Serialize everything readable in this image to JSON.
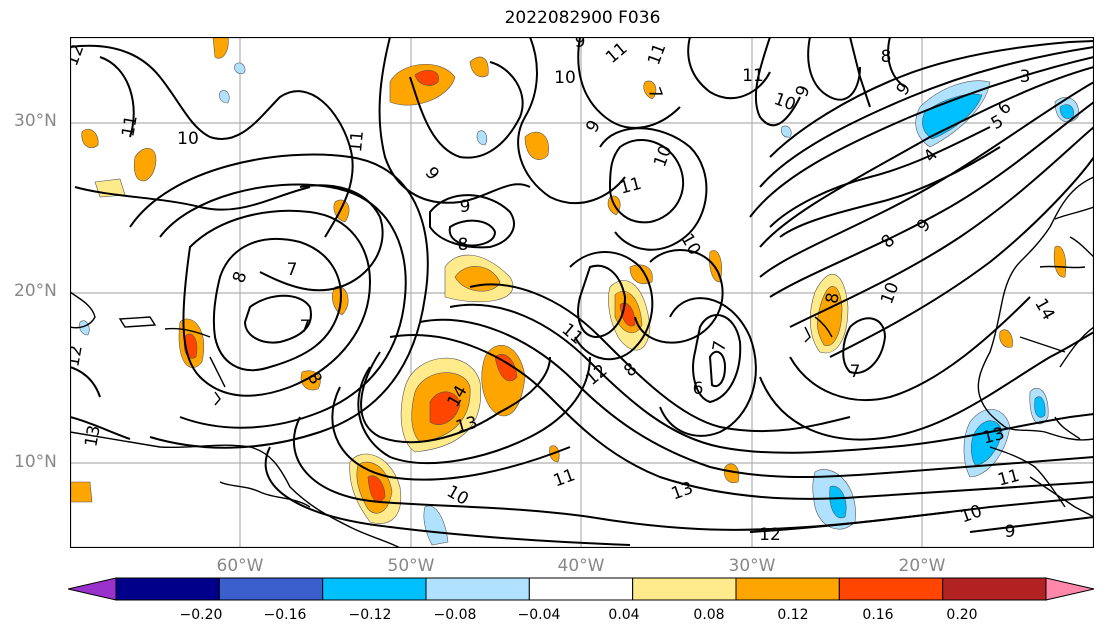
{
  "title": "2022082900 F036",
  "lat_labels": [
    {
      "label": "30°N",
      "lat": 30
    },
    {
      "label": "20°N",
      "lat": 20
    },
    {
      "label": "10°N",
      "lat": 10
    }
  ],
  "lon_labels": [
    {
      "label": "60°W",
      "lon": -60
    },
    {
      "label": "50°W",
      "lon": -50
    },
    {
      "label": "40°W",
      "lon": -40
    },
    {
      "label": "30°W",
      "lon": -30
    },
    {
      "label": "20°W",
      "lon": -20
    }
  ],
  "contour_labels": [
    "12",
    "11",
    "10",
    "8",
    "7",
    "7",
    "8",
    "9",
    "11",
    "9",
    "8",
    "9",
    "10",
    "11",
    "11",
    "9",
    "10",
    "7",
    "11",
    "10",
    "11",
    "10",
    "9",
    "8",
    "3",
    "6",
    "4",
    "5",
    "9",
    "8",
    "9",
    "10",
    "14",
    "13",
    "14",
    "13",
    "11",
    "12",
    "8",
    "7",
    "6",
    "8",
    "7",
    "13",
    "11",
    "10",
    "9",
    "13",
    "12",
    "10",
    "11",
    "12"
  ],
  "colorbar": {
    "ticks": [
      "−0.20",
      "−0.16",
      "−0.12",
      "−0.08",
      "−0.04",
      "0.04",
      "0.08",
      "0.12",
      "0.16",
      "0.20"
    ],
    "colors": [
      "#9932cc",
      "#00008b",
      "#3a5fcd",
      "#00bfff",
      "#b0e2ff",
      "#ffffff",
      "#ffea8c",
      "#ffa500",
      "#ff4500",
      "#b22222",
      "#ff88aa"
    ]
  }
}
